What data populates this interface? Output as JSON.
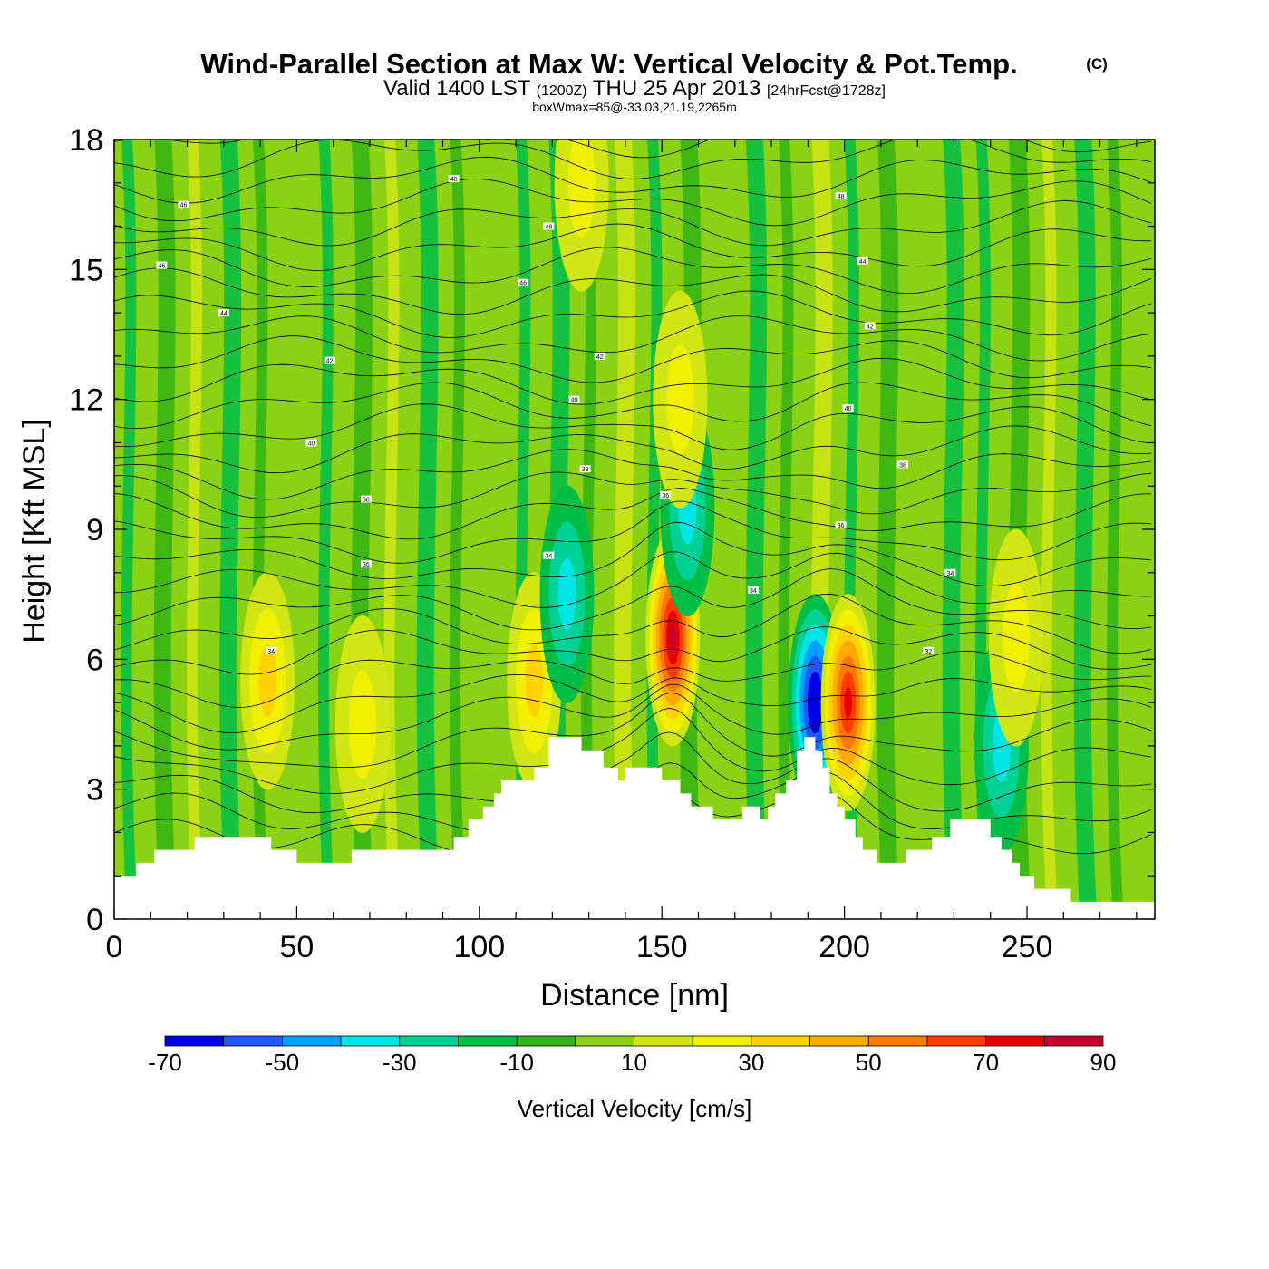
{
  "title": {
    "main": "Wind-Parallel Section at Max W: Vertical Velocity & Pot.Temp.",
    "copyright": "(C)",
    "valid_prefix": "Valid 1400 LST",
    "valid_zulu": "(1200Z)",
    "valid_date": "THU 25 Apr 2013",
    "forecast": "[24hrFcst@1728z]",
    "boxwmax": "boxWmax=85@-33.03,21.19,2265m"
  },
  "chart_data": {
    "type": "heatmap",
    "title": "Wind-Parallel Section at Max W: Vertical Velocity & Pot.Temp.",
    "xlabel": "Distance [nm]",
    "ylabel": "Height [Kft MSL]",
    "xlim": [
      0,
      285
    ],
    "ylim": [
      0,
      18
    ],
    "x_ticks": [
      0,
      50,
      100,
      150,
      200,
      250
    ],
    "x_tick_labels": [
      "0",
      "50",
      "100",
      "150",
      "200",
      "250"
    ],
    "y_ticks": [
      0,
      3,
      6,
      9,
      12,
      15,
      18
    ],
    "y_tick_labels": [
      "0",
      "3",
      "6",
      "9",
      "12",
      "15",
      "18"
    ],
    "colorbar": {
      "label": "Vertical Velocity [cm/s]",
      "bounds": [
        -70,
        -60,
        -50,
        -40,
        -30,
        -20,
        -10,
        0,
        10,
        20,
        30,
        40,
        50,
        60,
        70,
        80,
        90
      ],
      "tick_labels": [
        "-70",
        "-50",
        "-30",
        "-10",
        "10",
        "30",
        "50",
        "70",
        "90"
      ],
      "colors": [
        "#0000e6",
        "#1e5aff",
        "#00a0ff",
        "#00e6e6",
        "#00d296",
        "#00be46",
        "#32b414",
        "#8cd214",
        "#d2e614",
        "#f0f000",
        "#ffd200",
        "#ffaa00",
        "#ff7800",
        "#ff3c00",
        "#e60000",
        "#c80032"
      ]
    },
    "background_w": "#8cd214",
    "terrain": [
      [
        0,
        1.0
      ],
      [
        6,
        1.0
      ],
      [
        6,
        1.3
      ],
      [
        11,
        1.3
      ],
      [
        11,
        1.6
      ],
      [
        22,
        1.6
      ],
      [
        22,
        1.9
      ],
      [
        43,
        1.9
      ],
      [
        43,
        1.6
      ],
      [
        50,
        1.6
      ],
      [
        50,
        1.3
      ],
      [
        65,
        1.3
      ],
      [
        65,
        1.6
      ],
      [
        93,
        1.6
      ],
      [
        93,
        1.9
      ],
      [
        97,
        1.9
      ],
      [
        97,
        2.3
      ],
      [
        101,
        2.3
      ],
      [
        101,
        2.6
      ],
      [
        104,
        2.6
      ],
      [
        104,
        2.9
      ],
      [
        106,
        2.9
      ],
      [
        106,
        3.2
      ],
      [
        115,
        3.2
      ],
      [
        115,
        3.5
      ],
      [
        119,
        3.5
      ],
      [
        119,
        4.2
      ],
      [
        128,
        4.2
      ],
      [
        128,
        3.9
      ],
      [
        134,
        3.9
      ],
      [
        134,
        3.5
      ],
      [
        138,
        3.5
      ],
      [
        138,
        3.2
      ],
      [
        140,
        3.2
      ],
      [
        140,
        3.5
      ],
      [
        150,
        3.5
      ],
      [
        150,
        3.2
      ],
      [
        155,
        3.2
      ],
      [
        155,
        2.9
      ],
      [
        158,
        2.9
      ],
      [
        158,
        2.6
      ],
      [
        164,
        2.6
      ],
      [
        164,
        2.3
      ],
      [
        172,
        2.3
      ],
      [
        172,
        2.6
      ],
      [
        177,
        2.6
      ],
      [
        177,
        2.3
      ],
      [
        179,
        2.3
      ],
      [
        179,
        2.6
      ],
      [
        181,
        2.6
      ],
      [
        181,
        2.9
      ],
      [
        184,
        2.9
      ],
      [
        184,
        3.2
      ],
      [
        187,
        3.2
      ],
      [
        187,
        3.9
      ],
      [
        189,
        3.9
      ],
      [
        189,
        4.2
      ],
      [
        192,
        4.2
      ],
      [
        192,
        3.9
      ],
      [
        194,
        3.9
      ],
      [
        194,
        3.5
      ],
      [
        196,
        3.5
      ],
      [
        196,
        2.9
      ],
      [
        198,
        2.9
      ],
      [
        198,
        2.6
      ],
      [
        200,
        2.6
      ],
      [
        200,
        2.3
      ],
      [
        203,
        2.3
      ],
      [
        203,
        1.9
      ],
      [
        205,
        1.9
      ],
      [
        205,
        1.6
      ],
      [
        209,
        1.6
      ],
      [
        209,
        1.3
      ],
      [
        217,
        1.3
      ],
      [
        217,
        1.6
      ],
      [
        224,
        1.6
      ],
      [
        224,
        1.9
      ],
      [
        229,
        1.9
      ],
      [
        229,
        2.3
      ],
      [
        240,
        2.3
      ],
      [
        240,
        1.9
      ],
      [
        243,
        1.9
      ],
      [
        243,
        1.6
      ],
      [
        246,
        1.6
      ],
      [
        246,
        1.3
      ],
      [
        248,
        1.3
      ],
      [
        248,
        1.0
      ],
      [
        252,
        1.0
      ],
      [
        252,
        0.7
      ],
      [
        262,
        0.7
      ],
      [
        262,
        0.4
      ],
      [
        285,
        0.4
      ]
    ],
    "w_features": [
      {
        "x": 42,
        "z": 5.5,
        "w": 35
      },
      {
        "x": 68,
        "z": 4.5,
        "w": 25
      },
      {
        "x": 115,
        "z": 5.5,
        "w": 30
      },
      {
        "x": 124,
        "z": 7.5,
        "w": -30
      },
      {
        "x": 153,
        "z": 6.5,
        "w": 85
      },
      {
        "x": 157,
        "z": 9.5,
        "w": -35
      },
      {
        "x": 155,
        "z": 12.0,
        "w": 25
      },
      {
        "x": 192,
        "z": 5.0,
        "w": -70
      },
      {
        "x": 201,
        "z": 5.0,
        "w": 70
      },
      {
        "x": 243,
        "z": 4.0,
        "w": -30
      },
      {
        "x": 247,
        "z": 6.5,
        "w": 25
      },
      {
        "x": 128,
        "z": 17.0,
        "w": 25
      }
    ],
    "theta_labels": [
      {
        "x": 19,
        "z": 16.5,
        "text": "46"
      },
      {
        "x": 13,
        "z": 15.1,
        "text": "46"
      },
      {
        "x": 30,
        "z": 14.0,
        "text": "44"
      },
      {
        "x": 59,
        "z": 12.9,
        "text": "42"
      },
      {
        "x": 54,
        "z": 11.0,
        "text": "40"
      },
      {
        "x": 69,
        "z": 9.7,
        "text": "38"
      },
      {
        "x": 69,
        "z": 8.2,
        "text": "36"
      },
      {
        "x": 43,
        "z": 6.2,
        "text": "34"
      },
      {
        "x": 93,
        "z": 17.1,
        "text": "48"
      },
      {
        "x": 119,
        "z": 16.0,
        "text": "48"
      },
      {
        "x": 112,
        "z": 14.7,
        "text": "46"
      },
      {
        "x": 133,
        "z": 13.0,
        "text": "42"
      },
      {
        "x": 126,
        "z": 12.0,
        "text": "40"
      },
      {
        "x": 129,
        "z": 10.4,
        "text": "38"
      },
      {
        "x": 151,
        "z": 9.8,
        "text": "36"
      },
      {
        "x": 119,
        "z": 8.4,
        "text": "34"
      },
      {
        "x": 175,
        "z": 7.6,
        "text": "34"
      },
      {
        "x": 199,
        "z": 16.7,
        "text": "48"
      },
      {
        "x": 205,
        "z": 15.2,
        "text": "44"
      },
      {
        "x": 207,
        "z": 13.7,
        "text": "42"
      },
      {
        "x": 201,
        "z": 11.8,
        "text": "40"
      },
      {
        "x": 216,
        "z": 10.5,
        "text": "38"
      },
      {
        "x": 199,
        "z": 9.1,
        "text": "36"
      },
      {
        "x": 229,
        "z": 8.0,
        "text": "34"
      },
      {
        "x": 223,
        "z": 6.2,
        "text": "32"
      }
    ]
  }
}
